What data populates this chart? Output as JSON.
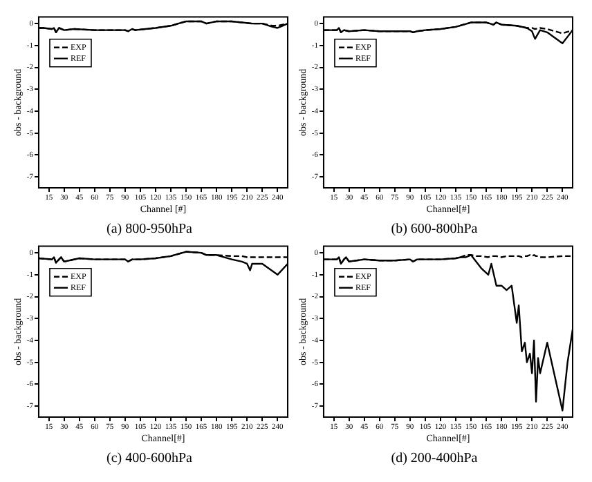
{
  "chart_data": [
    {
      "type": "line",
      "title": "(a) 800-950hPa",
      "xlabel": "Channel [#]",
      "ylabel": "obs - background",
      "xlim": [
        5,
        250
      ],
      "ylim": [
        -7.5,
        0.3
      ],
      "xticks": [
        15,
        30,
        45,
        60,
        75,
        90,
        105,
        120,
        135,
        150,
        165,
        180,
        195,
        210,
        225,
        240
      ],
      "yticks": [
        0,
        -1,
        -2,
        -3,
        -4,
        -5,
        -6,
        -7
      ],
      "legend": "top left",
      "marker": "none",
      "grid": false,
      "x": [
        5,
        10,
        18,
        20,
        22,
        25,
        30,
        40,
        60,
        75,
        90,
        93,
        97,
        100,
        110,
        120,
        135,
        150,
        155,
        165,
        170,
        180,
        195,
        205,
        215,
        225,
        235,
        240,
        245,
        250
      ],
      "series": [
        {
          "name": "EXP",
          "color": "#000000",
          "line_style": "dashed",
          "values": [
            -0.2,
            -0.2,
            -0.25,
            -0.2,
            -0.4,
            -0.2,
            -0.3,
            -0.25,
            -0.3,
            -0.3,
            -0.3,
            -0.35,
            -0.25,
            -0.3,
            -0.25,
            -0.2,
            -0.1,
            0.1,
            0.1,
            0.1,
            0.0,
            0.1,
            0.1,
            0.05,
            0.0,
            0.0,
            -0.1,
            -0.1,
            -0.05,
            0.0
          ]
        },
        {
          "name": "REF",
          "color": "#000000",
          "line_style": "solid",
          "values": [
            -0.2,
            -0.2,
            -0.25,
            -0.2,
            -0.4,
            -0.2,
            -0.3,
            -0.25,
            -0.3,
            -0.3,
            -0.3,
            -0.35,
            -0.25,
            -0.3,
            -0.25,
            -0.2,
            -0.1,
            0.1,
            0.1,
            0.1,
            0.0,
            0.1,
            0.1,
            0.05,
            0.0,
            0.0,
            -0.15,
            -0.2,
            -0.1,
            0.0
          ]
        }
      ]
    },
    {
      "type": "line",
      "title": "(b) 600-800hPa",
      "xlabel": "Channel[#]",
      "ylabel": "obs - background",
      "xlim": [
        5,
        250
      ],
      "ylim": [
        -7.5,
        0.3
      ],
      "xticks": [
        15,
        30,
        45,
        60,
        75,
        90,
        105,
        120,
        135,
        150,
        165,
        180,
        195,
        210,
        225,
        240
      ],
      "yticks": [
        0,
        -1,
        -2,
        -3,
        -4,
        -5,
        -6,
        -7
      ],
      "legend": "top left",
      "marker": "none",
      "grid": false,
      "x": [
        5,
        10,
        18,
        20,
        22,
        25,
        30,
        45,
        60,
        75,
        90,
        93,
        97,
        105,
        120,
        135,
        150,
        165,
        172,
        175,
        180,
        195,
        205,
        210,
        213,
        218,
        225,
        240,
        250
      ],
      "series": [
        {
          "name": "EXP",
          "color": "#000000",
          "line_style": "dashed",
          "values": [
            -0.3,
            -0.3,
            -0.3,
            -0.2,
            -0.4,
            -0.3,
            -0.35,
            -0.3,
            -0.35,
            -0.35,
            -0.35,
            -0.4,
            -0.35,
            -0.3,
            -0.25,
            -0.15,
            0.05,
            0.05,
            -0.05,
            0.05,
            -0.05,
            -0.1,
            -0.2,
            -0.2,
            -0.25,
            -0.2,
            -0.25,
            -0.45,
            -0.3
          ]
        },
        {
          "name": "REF",
          "color": "#000000",
          "line_style": "solid",
          "values": [
            -0.3,
            -0.3,
            -0.3,
            -0.2,
            -0.4,
            -0.3,
            -0.35,
            -0.3,
            -0.35,
            -0.35,
            -0.35,
            -0.4,
            -0.35,
            -0.3,
            -0.25,
            -0.15,
            0.05,
            0.05,
            -0.05,
            0.05,
            -0.05,
            -0.1,
            -0.2,
            -0.35,
            -0.7,
            -0.3,
            -0.4,
            -0.9,
            -0.3
          ]
        }
      ]
    },
    {
      "type": "line",
      "title": "(c) 400-600hPa",
      "xlabel": "Channel[#]",
      "ylabel": "obs - background",
      "xlim": [
        5,
        250
      ],
      "ylim": [
        -7.5,
        0.3
      ],
      "xticks": [
        15,
        30,
        45,
        60,
        75,
        90,
        105,
        120,
        135,
        150,
        165,
        180,
        195,
        210,
        225,
        240
      ],
      "yticks": [
        0,
        -1,
        -2,
        -3,
        -4,
        -5,
        -6,
        -7
      ],
      "legend": "top left",
      "marker": "none",
      "grid": false,
      "x": [
        5,
        18,
        20,
        22,
        25,
        27,
        30,
        45,
        60,
        75,
        90,
        93,
        97,
        105,
        120,
        135,
        150,
        165,
        170,
        180,
        195,
        205,
        210,
        213,
        215,
        225,
        240,
        250
      ],
      "series": [
        {
          "name": "EXP",
          "color": "#000000",
          "line_style": "dashed",
          "values": [
            -0.25,
            -0.3,
            -0.2,
            -0.45,
            -0.3,
            -0.2,
            -0.4,
            -0.25,
            -0.3,
            -0.3,
            -0.3,
            -0.4,
            -0.3,
            -0.3,
            -0.25,
            -0.15,
            0.05,
            0.0,
            -0.1,
            -0.1,
            -0.15,
            -0.15,
            -0.2,
            -0.2,
            -0.2,
            -0.2,
            -0.2,
            -0.2
          ]
        },
        {
          "name": "REF",
          "color": "#000000",
          "line_style": "solid",
          "values": [
            -0.25,
            -0.3,
            -0.2,
            -0.45,
            -0.3,
            -0.2,
            -0.4,
            -0.25,
            -0.3,
            -0.3,
            -0.3,
            -0.4,
            -0.3,
            -0.3,
            -0.25,
            -0.15,
            0.05,
            0.0,
            -0.1,
            -0.1,
            -0.3,
            -0.4,
            -0.5,
            -0.8,
            -0.5,
            -0.5,
            -1.0,
            -0.5
          ]
        }
      ]
    },
    {
      "type": "line",
      "title": "(d) 200-400hPa",
      "xlabel": "Channel[#]",
      "ylabel": "obs - background",
      "xlim": [
        5,
        250
      ],
      "ylim": [
        -7.5,
        0.3
      ],
      "xticks": [
        15,
        30,
        45,
        60,
        75,
        90,
        105,
        120,
        135,
        150,
        165,
        180,
        195,
        210,
        225,
        240
      ],
      "yticks": [
        0,
        -1,
        -2,
        -3,
        -4,
        -5,
        -6,
        -7
      ],
      "legend": "top left",
      "marker": "none",
      "grid": false,
      "x": [
        5,
        18,
        20,
        22,
        25,
        27,
        30,
        45,
        60,
        75,
        90,
        93,
        97,
        105,
        120,
        135,
        140,
        145,
        150,
        155,
        160,
        167,
        170,
        175,
        180,
        185,
        190,
        195,
        197,
        200,
        203,
        205,
        208,
        210,
        212,
        214,
        216,
        218,
        225,
        240,
        245,
        250
      ],
      "series": [
        {
          "name": "EXP",
          "color": "#000000",
          "line_style": "dashed",
          "values": [
            -0.3,
            -0.3,
            -0.2,
            -0.5,
            -0.3,
            -0.2,
            -0.4,
            -0.3,
            -0.35,
            -0.35,
            -0.3,
            -0.4,
            -0.3,
            -0.3,
            -0.3,
            -0.25,
            -0.2,
            -0.1,
            -0.1,
            -0.15,
            -0.15,
            -0.2,
            -0.15,
            -0.15,
            -0.2,
            -0.15,
            -0.15,
            -0.15,
            -0.15,
            -0.2,
            -0.15,
            -0.15,
            -0.1,
            -0.15,
            -0.1,
            -0.15,
            -0.15,
            -0.2,
            -0.2,
            -0.15,
            -0.15,
            -0.15
          ]
        },
        {
          "name": "REF",
          "color": "#000000",
          "line_style": "solid",
          "values": [
            -0.3,
            -0.3,
            -0.2,
            -0.5,
            -0.3,
            -0.2,
            -0.4,
            -0.3,
            -0.35,
            -0.35,
            -0.3,
            -0.4,
            -0.3,
            -0.3,
            -0.3,
            -0.25,
            -0.2,
            -0.2,
            -0.1,
            -0.4,
            -0.7,
            -1.0,
            -0.5,
            -1.5,
            -1.5,
            -1.7,
            -1.5,
            -3.2,
            -2.4,
            -4.5,
            -4.1,
            -5.0,
            -4.6,
            -5.5,
            -4.0,
            -6.8,
            -4.8,
            -5.5,
            -4.1,
            -7.2,
            -5.0,
            -3.5
          ]
        }
      ]
    }
  ]
}
